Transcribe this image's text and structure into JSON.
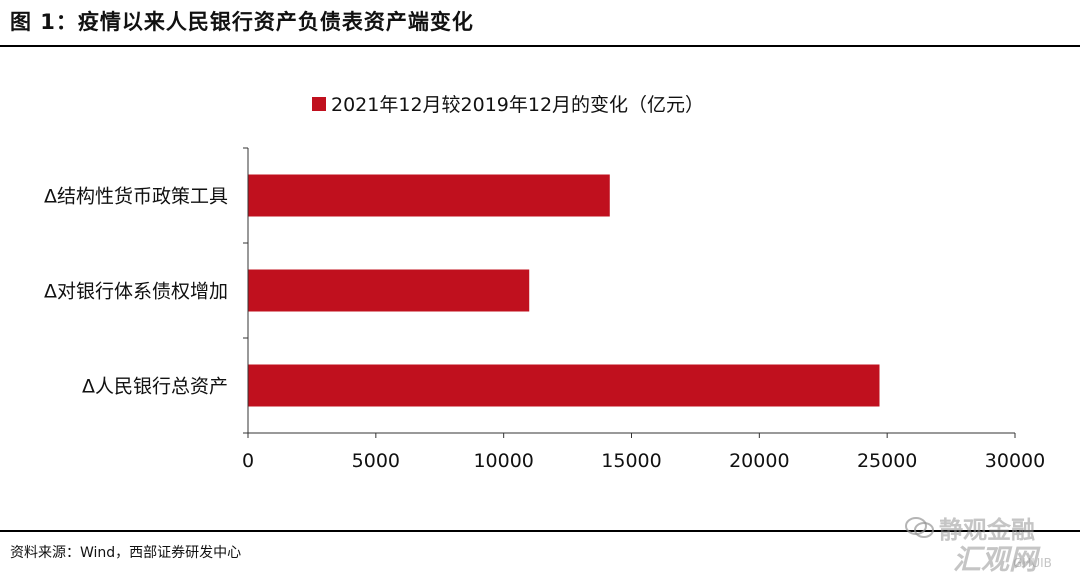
{
  "header": {
    "title": "图 1：疫情以来人民银行资产负债表资产端变化"
  },
  "footer": {
    "source": "资料来源：Wind，西部证券研发中心"
  },
  "watermark": {
    "line1": "静观金融",
    "line2": "汇观网",
    "line3": "GHUIB"
  },
  "colors": {
    "bar": "#C0101E"
  },
  "chart_data": {
    "type": "bar",
    "orientation": "horizontal",
    "categories": [
      "Δ结构性货币政策工具",
      "Δ对银行体系债权增加",
      "Δ人民银行总资产"
    ],
    "series": [
      {
        "name": "2021年12月较2019年12月的变化（亿元）",
        "values": [
          14150,
          11000,
          24700
        ]
      }
    ],
    "xlim": [
      0,
      30000
    ],
    "xticks": [
      0,
      5000,
      10000,
      15000,
      20000,
      25000,
      30000
    ],
    "legend": "top-center",
    "grid": false
  }
}
